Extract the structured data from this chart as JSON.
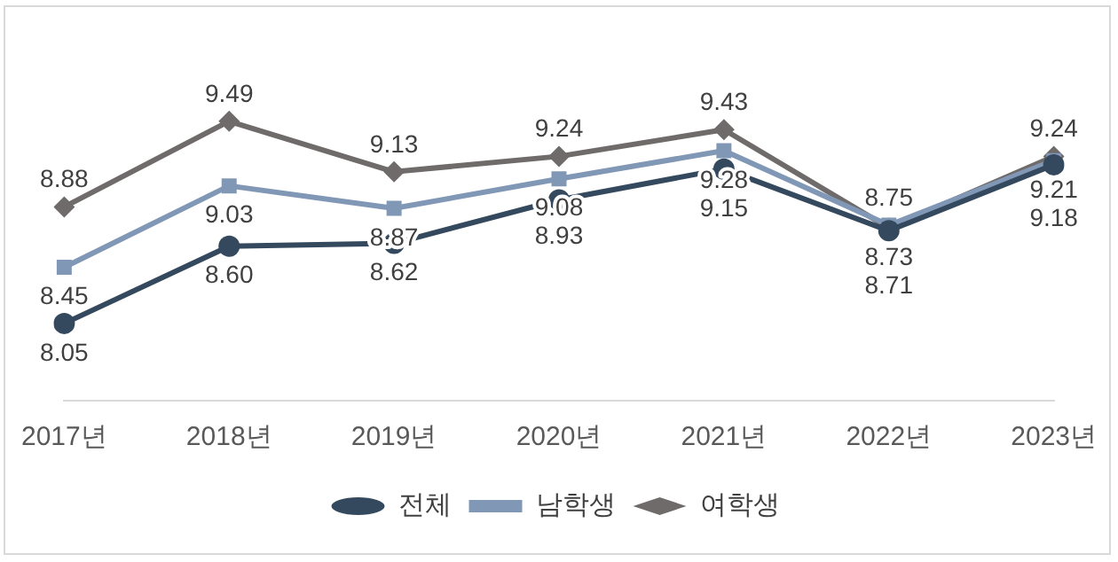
{
  "chart_data": {
    "type": "line",
    "categories": [
      "2017년",
      "2018년",
      "2019년",
      "2020년",
      "2021년",
      "2022년",
      "2023년"
    ],
    "series": [
      {
        "name": "전체",
        "color": "#34495e",
        "marker": "circle",
        "values": [
          8.05,
          8.6,
          8.62,
          8.93,
          9.15,
          8.71,
          9.18
        ],
        "value_labels": [
          "8.05",
          "8.60",
          "8.62",
          "8.93",
          "9.15",
          "8.71",
          "9.18"
        ]
      },
      {
        "name": "남학생",
        "color": "#8197b6",
        "marker": "square",
        "values": [
          8.45,
          9.03,
          8.87,
          9.08,
          9.28,
          8.75,
          9.21
        ],
        "value_labels": [
          "8.45",
          "9.03",
          "8.87",
          "9.08",
          "9.28",
          "8.75",
          "9.21"
        ]
      },
      {
        "name": "여학생",
        "color": "#6f6b6b",
        "marker": "diamond",
        "values": [
          8.88,
          9.49,
          9.13,
          9.24,
          9.43,
          8.73,
          9.24
        ],
        "value_labels": [
          "8.88",
          "9.49",
          "9.13",
          "9.24",
          "9.43",
          "8.73",
          "9.24"
        ]
      }
    ],
    "tick_labels": "x",
    "grid": false,
    "legend": "bottom",
    "line_style": "solid"
  }
}
